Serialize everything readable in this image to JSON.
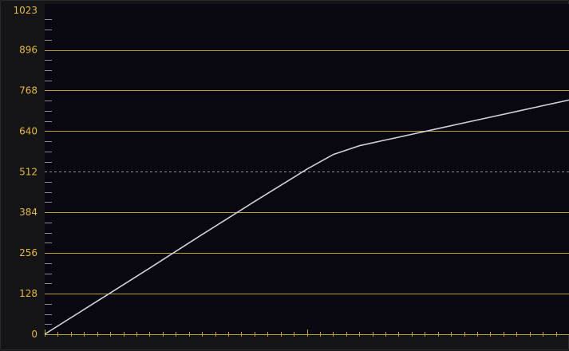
{
  "chart_data": {
    "type": "line",
    "title": "",
    "xlabel": "",
    "ylabel": "",
    "ylim": [
      0,
      1023
    ],
    "y_tick_labels": [
      "1023",
      "896",
      "768",
      "640",
      "512",
      "384",
      "256",
      "128",
      "0"
    ],
    "y_tick_values": [
      1023,
      896,
      768,
      640,
      512,
      384,
      256,
      128,
      0
    ],
    "reference_line": {
      "value": 512,
      "style": "dashed"
    },
    "grid": true,
    "colors": {
      "background": "#090810",
      "grid": "#b9a136",
      "tick_label": "#e3b93f",
      "curve": "#cfd2de",
      "axis_ticks": "#b9a136"
    },
    "series": [
      {
        "values_x_fraction": [
          0.0,
          0.1,
          0.2,
          0.3,
          0.4,
          0.5,
          0.55,
          0.6,
          0.65,
          0.7,
          0.75,
          0.8,
          0.85,
          0.9,
          0.95,
          1.0
        ],
        "values": [
          0,
          104,
          208,
          314,
          418,
          520,
          566,
          594,
          612,
          630,
          648,
          666,
          684,
          702,
          720,
          738
        ]
      }
    ]
  }
}
